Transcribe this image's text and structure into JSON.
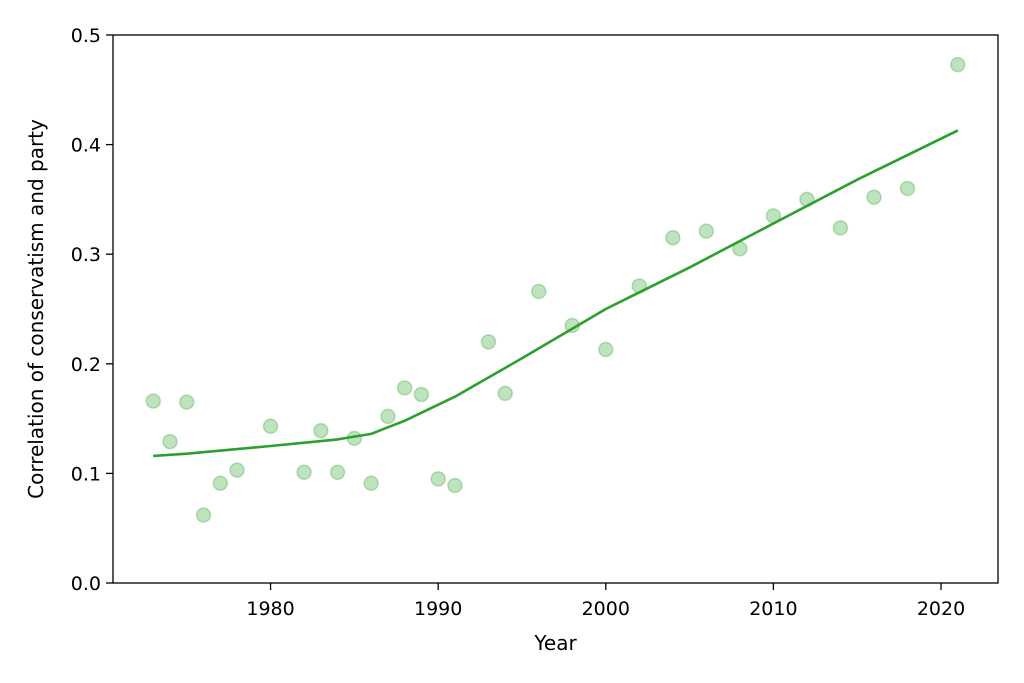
{
  "chart_data": {
    "type": "scatter",
    "title": "",
    "xlabel": "Year",
    "ylabel": "Correlation of conservatism and party",
    "xlim": [
      1970.6,
      2023.4
    ],
    "ylim": [
      0.0,
      0.5
    ],
    "xticks": [
      1980,
      1990,
      2000,
      2010,
      2020
    ],
    "yticks": [
      0.0,
      0.1,
      0.2,
      0.3,
      0.4,
      0.5
    ],
    "ytick_labels": [
      "0.0",
      "0.1",
      "0.2",
      "0.3",
      "0.4",
      "0.5"
    ],
    "grid": false,
    "legend": false,
    "series": [
      {
        "kind": "scatter",
        "color": "#2ca02c",
        "opacity": 0.3,
        "x": [
          1973,
          1974,
          1975,
          1976,
          1977,
          1978,
          1980,
          1982,
          1983,
          1984,
          1985,
          1986,
          1987,
          1988,
          1989,
          1990,
          1991,
          1993,
          1994,
          1996,
          1998,
          2000,
          2002,
          2004,
          2006,
          2008,
          2010,
          2012,
          2014,
          2016,
          2018,
          2021
        ],
        "y": [
          0.166,
          0.129,
          0.165,
          0.062,
          0.091,
          0.103,
          0.143,
          0.101,
          0.139,
          0.101,
          0.132,
          0.091,
          0.152,
          0.178,
          0.172,
          0.095,
          0.089,
          0.22,
          0.173,
          0.266,
          0.235,
          0.213,
          0.271,
          0.315,
          0.321,
          0.305,
          0.335,
          0.35,
          0.324,
          0.352,
          0.36,
          0.473
        ]
      },
      {
        "kind": "line",
        "color": "#2ca02c",
        "x": [
          1973,
          1975,
          1980,
          1984,
          1986,
          1988,
          1991,
          1995,
          2000,
          2005,
          2010,
          2015,
          2021
        ],
        "y": [
          0.116,
          0.118,
          0.125,
          0.131,
          0.136,
          0.148,
          0.17,
          0.205,
          0.25,
          0.288,
          0.328,
          0.368,
          0.413
        ]
      }
    ]
  }
}
